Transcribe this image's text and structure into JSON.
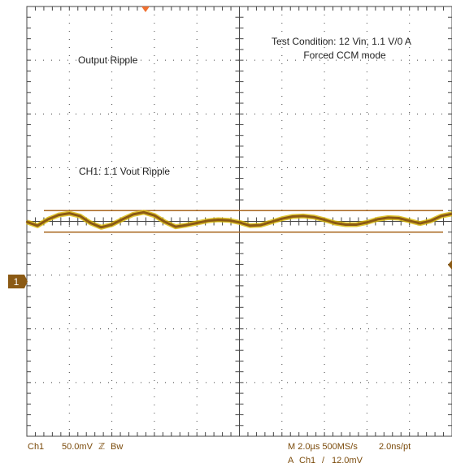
{
  "annotations": {
    "title": "Output Ripple",
    "condition_line1": "Test Condition: 12 Vin, 1.1 V/0 A",
    "condition_line2": "Forced CCM mode",
    "channel_note": "CH1: 1.1 Vout Ripple"
  },
  "readout": {
    "channel": "Ch1",
    "scale": "50.0mV",
    "bw_symbol": "ℤ",
    "bw": "Bw",
    "timebase": "M 2.0µs 500MS/s",
    "sample_interval": "2.0ns/pt",
    "trigger_prefix": "A",
    "trigger_channel": "Ch1",
    "trigger_slope": "/",
    "trigger_level": "12.0mV"
  },
  "markers": {
    "channel_marker": "1"
  },
  "colors": {
    "trace": "#8b5a14",
    "trace_highlight": "#d8b800",
    "cursor": "#a8661e",
    "grid": "#444444",
    "trigger_marker": "#f07030"
  },
  "chart_data": {
    "type": "line",
    "title": "Output Ripple",
    "x_unit": "µs",
    "x_range": [
      0,
      20
    ],
    "y_unit": "mV",
    "y_range": [
      -200,
      200
    ],
    "grid": true,
    "divisions": {
      "x": 10,
      "y": 8
    },
    "cursors_mV": [
      10,
      -10
    ],
    "series": [
      {
        "name": "CH1",
        "points": [
          [
            0.0,
            -0.5
          ],
          [
            0.5,
            -4
          ],
          [
            1.0,
            2
          ],
          [
            1.5,
            6
          ],
          [
            2.0,
            7.5
          ],
          [
            2.5,
            5
          ],
          [
            3.0,
            -1.5
          ],
          [
            3.5,
            -5.5
          ],
          [
            4.0,
            -3
          ],
          [
            4.5,
            2
          ],
          [
            5.0,
            6.5
          ],
          [
            5.5,
            8.5
          ],
          [
            6.0,
            5.5
          ],
          [
            6.5,
            -0.5
          ],
          [
            7.0,
            -5
          ],
          [
            7.5,
            -3.5
          ],
          [
            8.0,
            -1.5
          ],
          [
            8.5,
            0.5
          ],
          [
            9.0,
            1.5
          ],
          [
            9.5,
            1
          ],
          [
            10.0,
            -1
          ],
          [
            10.5,
            -4
          ],
          [
            11.0,
            -3.5
          ],
          [
            11.5,
            -0.5
          ],
          [
            12.0,
            2.5
          ],
          [
            12.5,
            4.5
          ],
          [
            13.0,
            5
          ],
          [
            13.5,
            4
          ],
          [
            14.0,
            1.5
          ],
          [
            14.5,
            -1.5
          ],
          [
            15.0,
            -3
          ],
          [
            15.5,
            -3
          ],
          [
            16.0,
            -1
          ],
          [
            16.5,
            2
          ],
          [
            17.0,
            3.5
          ],
          [
            17.5,
            3
          ],
          [
            18.0,
            0.5
          ],
          [
            18.5,
            -2
          ],
          [
            19.0,
            0.5
          ],
          [
            19.5,
            5
          ],
          [
            20.0,
            7
          ]
        ]
      }
    ]
  }
}
